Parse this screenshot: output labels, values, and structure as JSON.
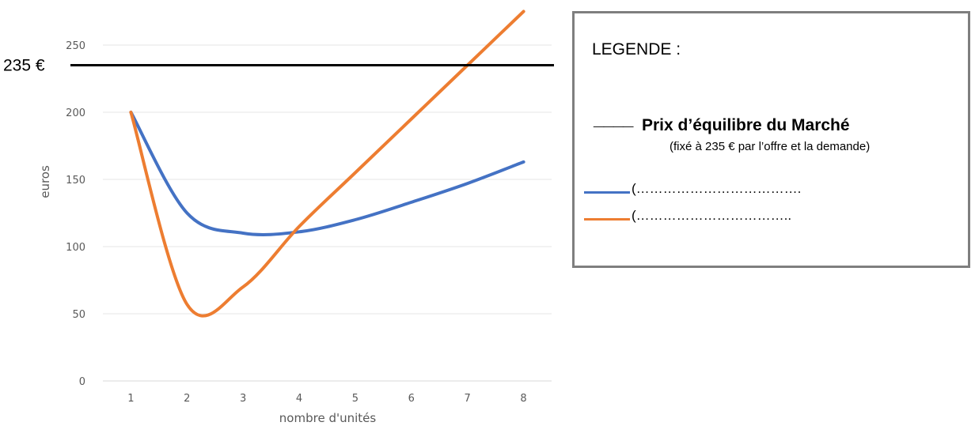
{
  "chart_data": {
    "type": "line",
    "xlabel": "nombre d'unités",
    "ylabel": "euros",
    "x": [
      1,
      2,
      3,
      4,
      5,
      6,
      7,
      8
    ],
    "xlim": [
      0.5,
      8.5
    ],
    "ylim": [
      0,
      250
    ],
    "y_ticks": [
      0,
      50,
      100,
      150,
      200,
      250
    ],
    "grid": true,
    "series": [
      {
        "color": "#4472c4",
        "values": [
          200,
          125,
          110,
          111,
          120,
          133,
          147,
          163
        ]
      },
      {
        "color": "#ed7d31",
        "values": [
          200,
          57,
          70,
          115,
          155,
          195,
          235,
          275
        ]
      }
    ],
    "reference_line": {
      "value": 235,
      "label": "235 €",
      "color": "#000000"
    }
  },
  "legend": {
    "title": "LEGENDE :",
    "price_symbol": "____",
    "price_label": "Prix d’équilibre du Marché",
    "price_note": "(fixé à 235 € par l’offre et la demande)",
    "blue_entry": "(……………………………….",
    "orange_entry": "(……………………………..",
    "blue_color": "#4472c4",
    "orange_color": "#ed7d31"
  }
}
